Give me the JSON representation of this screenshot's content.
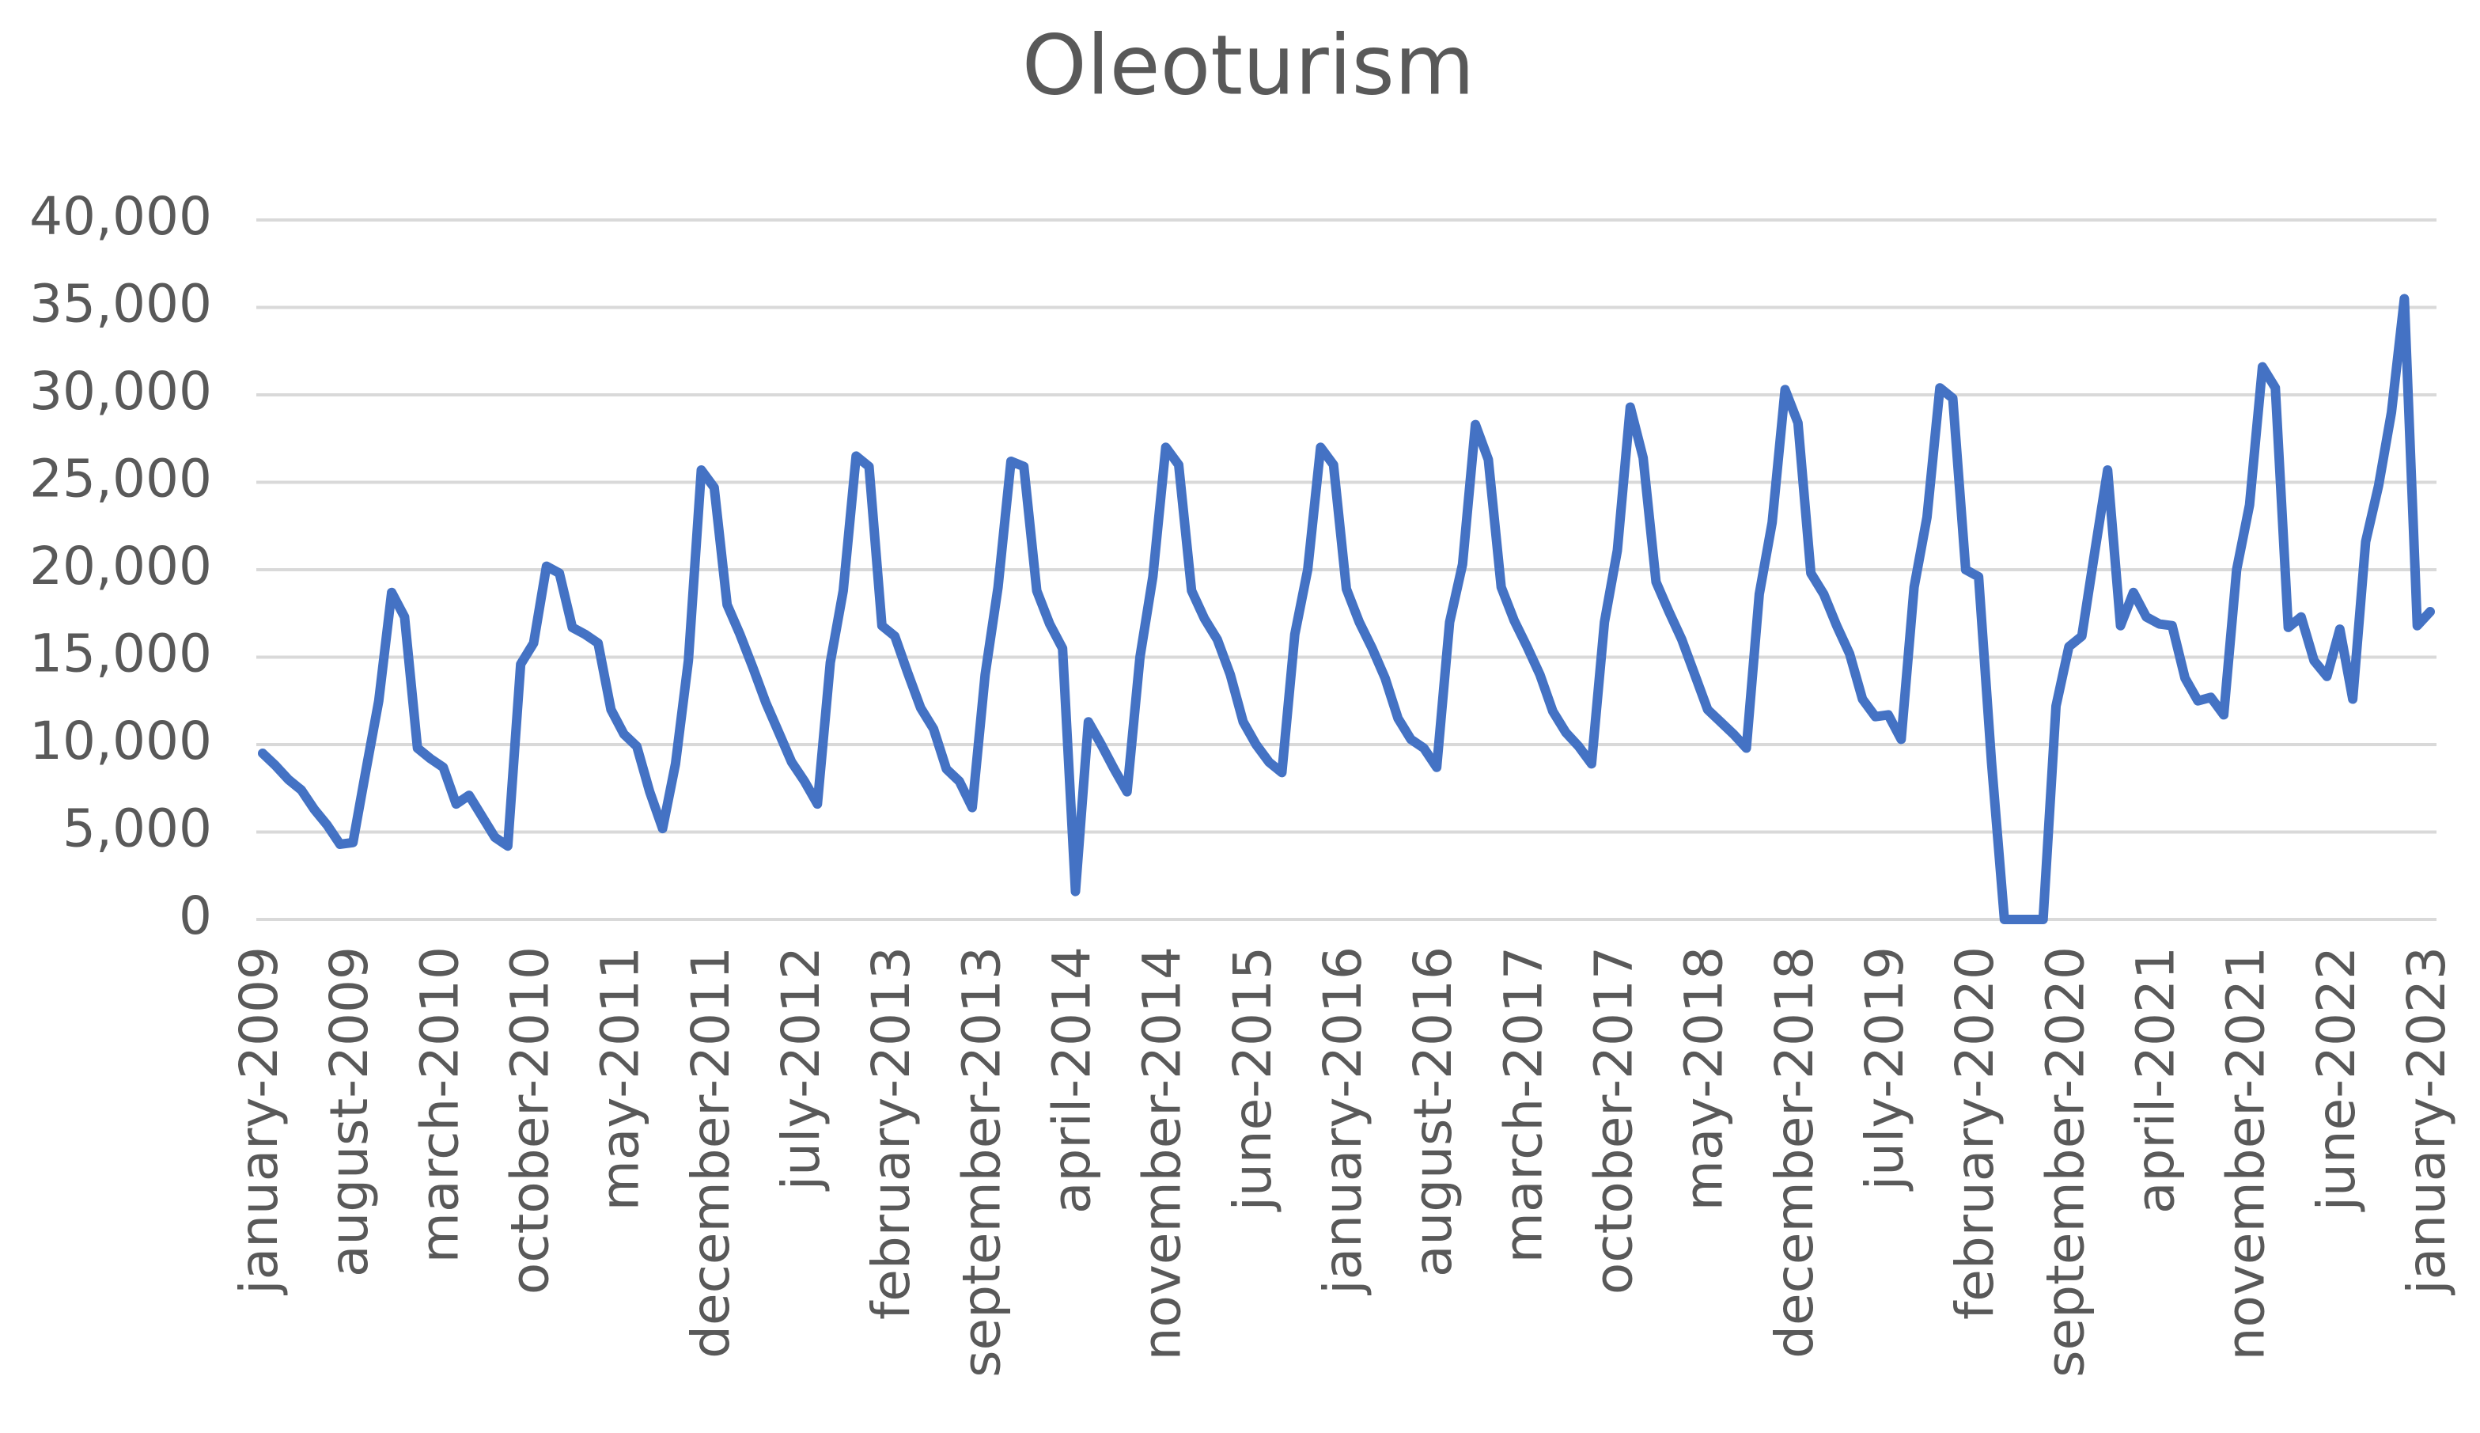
{
  "chart_data": {
    "type": "line",
    "title": "Oleoturism",
    "categories": [
      "january-2009",
      null,
      null,
      null,
      null,
      null,
      null,
      "august-2009",
      null,
      null,
      null,
      null,
      null,
      null,
      "march-2010",
      null,
      null,
      null,
      null,
      null,
      null,
      "october-2010",
      null,
      null,
      null,
      null,
      null,
      null,
      "may-2011",
      null,
      null,
      null,
      null,
      null,
      null,
      "december-2011",
      null,
      null,
      null,
      null,
      null,
      null,
      "july-2012",
      null,
      null,
      null,
      null,
      null,
      null,
      "february-2013",
      null,
      null,
      null,
      null,
      null,
      null,
      "september-2013",
      null,
      null,
      null,
      null,
      null,
      null,
      "april-2014",
      null,
      null,
      null,
      null,
      null,
      null,
      "november-2014",
      null,
      null,
      null,
      null,
      null,
      null,
      "june-2015",
      null,
      null,
      null,
      null,
      null,
      null,
      "january-2016",
      null,
      null,
      null,
      null,
      null,
      null,
      "august-2016",
      null,
      null,
      null,
      null,
      null,
      null,
      "march-2017",
      null,
      null,
      null,
      null,
      null,
      null,
      "october-2017",
      null,
      null,
      null,
      null,
      null,
      null,
      "may-2018",
      null,
      null,
      null,
      null,
      null,
      null,
      "december-2018",
      null,
      null,
      null,
      null,
      null,
      null,
      "july-2019",
      null,
      null,
      null,
      null,
      null,
      null,
      "february-2020",
      null,
      null,
      null,
      null,
      null,
      null,
      "september-2020",
      null,
      null,
      null,
      null,
      null,
      null,
      "april-2021",
      null,
      null,
      null,
      null,
      null,
      null,
      "november-2021",
      null,
      null,
      null,
      null,
      null,
      null,
      "june-2022",
      null,
      null,
      null,
      null,
      null,
      null,
      "january-2023"
    ],
    "series": [
      {
        "name": "Oleoturism",
        "color": "#4472c4",
        "values": [
          9500,
          8800,
          8000,
          7400,
          6300,
          5400,
          4300,
          4400,
          8500,
          12500,
          18700,
          17300,
          9800,
          9200,
          8700,
          6600,
          7100,
          5900,
          4700,
          4200,
          14600,
          15800,
          20200,
          19800,
          16700,
          16300,
          15800,
          12000,
          10600,
          9900,
          7300,
          5200,
          8900,
          14800,
          25700,
          24700,
          18000,
          16300,
          14400,
          12400,
          10700,
          9000,
          7900,
          6600,
          14700,
          18800,
          26500,
          25900,
          16800,
          16200,
          14100,
          12100,
          10900,
          8600,
          7900,
          6400,
          14000,
          19000,
          26200,
          25900,
          18800,
          16900,
          15500,
          1600,
          11300,
          10000,
          8600,
          7300,
          15000,
          19600,
          27000,
          26000,
          18800,
          17200,
          16000,
          14000,
          11300,
          10000,
          9000,
          8400,
          16300,
          20000,
          27000,
          26000,
          18900,
          17000,
          15500,
          13800,
          11500,
          10300,
          9800,
          8700,
          17000,
          20300,
          28300,
          26300,
          19000,
          17100,
          15600,
          14000,
          11900,
          10700,
          9900,
          8900,
          17000,
          21100,
          29300,
          26400,
          19300,
          17600,
          16000,
          14000,
          12000,
          11300,
          10600,
          9800,
          18600,
          22700,
          30300,
          28400,
          19800,
          18600,
          16800,
          15200,
          12600,
          11600,
          11700,
          10300,
          19000,
          23000,
          30400,
          29800,
          20000,
          19600,
          9000,
          0,
          0,
          0,
          0,
          12200,
          15600,
          16200,
          21000,
          25700,
          16800,
          18700,
          17300,
          16900,
          16800,
          13800,
          12500,
          12700,
          11700,
          20000,
          23700,
          31600,
          30400,
          16700,
          17300,
          14800,
          13900,
          16600,
          12600,
          21600,
          24800,
          29000,
          35500,
          16800,
          17600
        ]
      }
    ],
    "ylim": [
      0,
      40000
    ],
    "yticks": [
      0,
      {
        "value": 5000,
        "label": "5,000"
      },
      {
        "value": 10000,
        "label": "10,000"
      },
      {
        "value": 15000,
        "label": "15,000"
      },
      {
        "value": 20000,
        "label": "20,000"
      },
      {
        "value": 25000,
        "label": "25,000"
      },
      {
        "value": 30000,
        "label": "30,000"
      },
      {
        "value": 35000,
        "label": "35,000"
      },
      {
        "value": 40000,
        "label": "40,000"
      }
    ],
    "grid": true
  }
}
